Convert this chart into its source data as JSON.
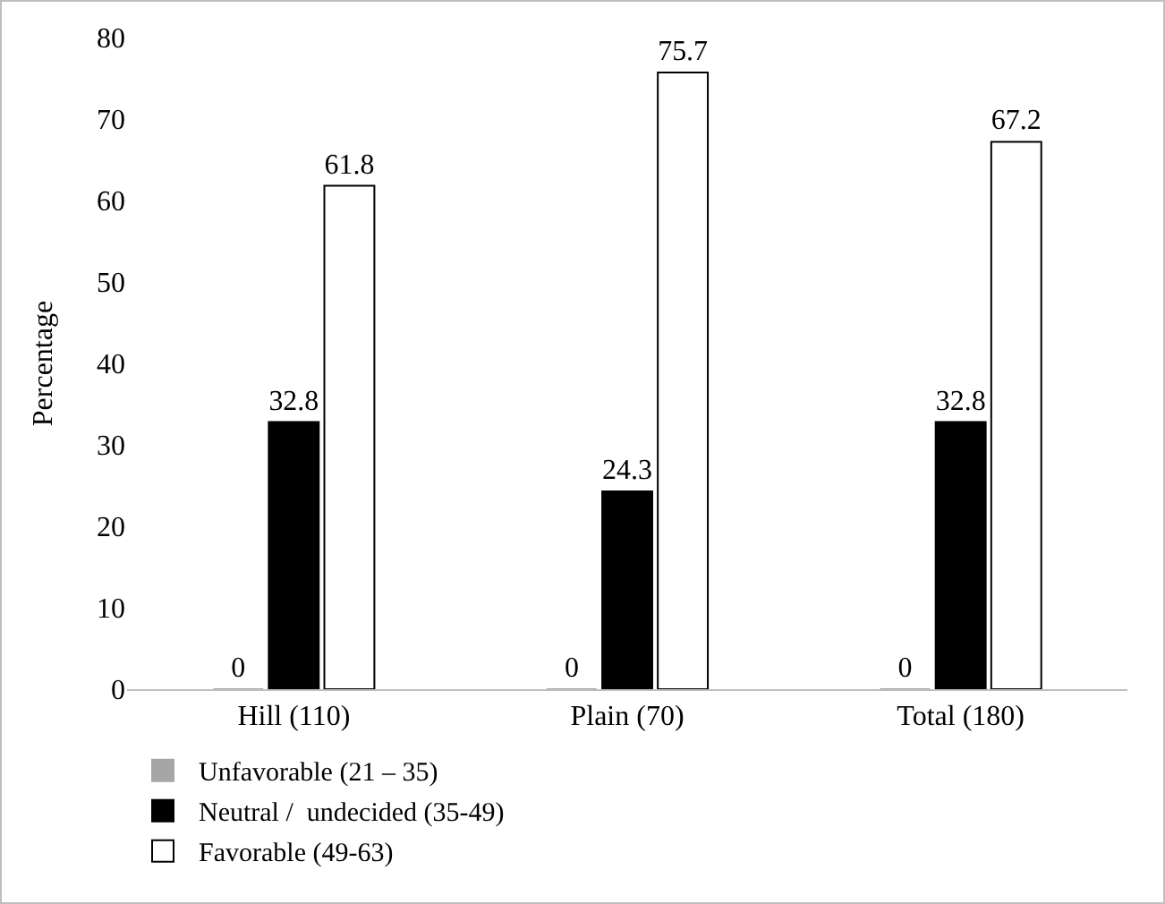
{
  "chart_data": {
    "type": "bar",
    "ylabel": "Percentage",
    "categories": [
      "Hill (110)",
      "Plain (70)",
      "Total (180)"
    ],
    "series": [
      {
        "name": "Unfavorable (21 – 35)",
        "color": "#a6a6a6",
        "values": [
          0,
          0,
          0
        ]
      },
      {
        "name": "Neutral /  undecided (35-49)",
        "color": "#000000",
        "values": [
          32.8,
          24.3,
          32.8
        ]
      },
      {
        "name": "Favorable (49-63)",
        "color": "#ffffff",
        "values": [
          61.8,
          75.7,
          67.2
        ]
      }
    ],
    "ylim": [
      0,
      80
    ],
    "yticks": [
      0,
      10,
      20,
      30,
      40,
      50,
      60,
      70,
      80
    ],
    "grid": false,
    "legend": "bottom",
    "data_labels": true
  }
}
